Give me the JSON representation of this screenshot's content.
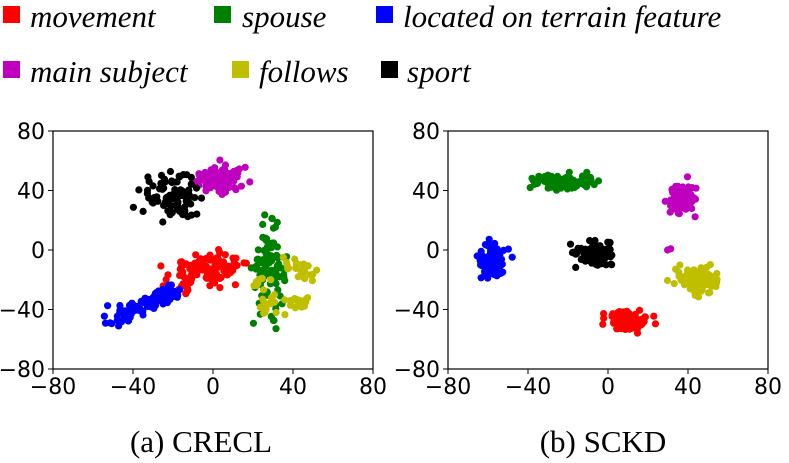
{
  "legend": [
    {
      "label": "movement",
      "color": "#ff0000"
    },
    {
      "label": "spouse",
      "color": "#008000"
    },
    {
      "label": "located on terrain feature",
      "color": "#0000ff"
    },
    {
      "label": "main subject",
      "color": "#bf00bf"
    },
    {
      "label": "follows",
      "color": "#bfbf00"
    },
    {
      "label": "sport",
      "color": "#000000"
    }
  ],
  "chart_data": [
    {
      "type": "scatter",
      "caption": "(a) CRECL",
      "xlim": [
        -80,
        80
      ],
      "ylim": [
        -80,
        80
      ],
      "xticks": [
        "−80",
        "−40",
        "0",
        "40",
        "80"
      ],
      "yticks": [
        "80",
        "40",
        "0",
        "−40",
        "−80"
      ],
      "series": [
        {
          "name": "movement",
          "color": "#ff0000",
          "clusters": [
            [
              -2,
              -12,
              10,
              5,
              110
            ],
            [
              -17,
              -26,
              4,
              4,
              18
            ]
          ]
        },
        {
          "name": "spouse",
          "color": "#008000",
          "clusters": [
            [
              28,
              -12,
              4,
              13,
              90
            ]
          ]
        },
        {
          "name": "located on terrain feature",
          "color": "#0000ff",
          "line": [
            [
              -48,
              -45
            ],
            [
              -18,
              -28
            ]
          ],
          "spread": 3.5,
          "n": 95
        },
        {
          "name": "main subject",
          "color": "#bf00bf",
          "clusters": [
            [
              3,
              47,
              6,
              5,
              90
            ]
          ]
        },
        {
          "name": "follows",
          "color": "#bfbf00",
          "clusters": [
            [
              45,
              -14,
              3,
              3,
              20
            ],
            [
              29,
              -37,
              4,
              3,
              20
            ],
            [
              42,
              -35,
              3,
              3,
              18
            ],
            [
              24,
              -20,
              3,
              3,
              10
            ],
            [
              38,
              -10,
              3,
              3,
              8
            ]
          ]
        },
        {
          "name": "sport",
          "color": "#000000",
          "clusters": [
            [
              -20,
              38,
              7,
              8,
              85
            ]
          ]
        }
      ]
    },
    {
      "type": "scatter",
      "caption": "(b) SCKD",
      "xlim": [
        -80,
        80
      ],
      "ylim": [
        -80,
        80
      ],
      "xticks": [
        "−80",
        "−40",
        "0",
        "40",
        "80"
      ],
      "yticks": [
        "80",
        "40",
        "0",
        "−40",
        "−80"
      ],
      "series": [
        {
          "name": "movement",
          "color": "#ff0000",
          "clusters": [
            [
              10,
              -47,
              5,
              3.5,
              110
            ]
          ]
        },
        {
          "name": "spouse",
          "color": "#008000",
          "clusters": [
            [
              -22,
              46,
              8,
              2.5,
              110
            ]
          ]
        },
        {
          "name": "located on terrain feature",
          "color": "#0000ff",
          "clusters": [
            [
              -58,
              -8,
              3,
              5.5,
              120
            ]
          ]
        },
        {
          "name": "main subject",
          "color": "#bf00bf",
          "clusters": [
            [
              37,
              35,
              3,
              4.5,
              85
            ],
            [
              30,
              0,
              1,
              1,
              2
            ]
          ]
        },
        {
          "name": "follows",
          "color": "#bfbf00",
          "clusters": [
            [
              45,
              -20,
              4.5,
              4,
              140
            ]
          ]
        },
        {
          "name": "sport",
          "color": "#000000",
          "clusters": [
            [
              -6,
              -3,
              4.5,
              4,
              110
            ]
          ]
        }
      ]
    }
  ]
}
